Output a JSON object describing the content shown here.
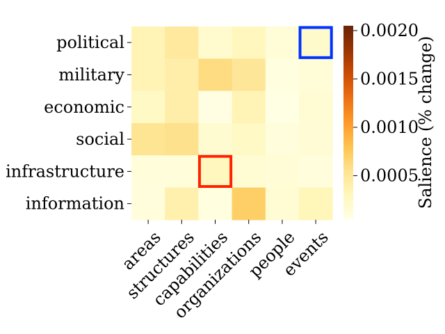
{
  "chart_data": {
    "type": "heatmap",
    "rows": [
      "political",
      "military",
      "economic",
      "social",
      "infrastructure",
      "information"
    ],
    "columns": [
      "areas",
      "structures",
      "capabilities",
      "organizations",
      "people",
      "events"
    ],
    "values": [
      [
        0.00034,
        0.00047,
        0.00019,
        0.00029,
        0.00013,
        0.00021
      ],
      [
        0.00034,
        0.00041,
        0.00061,
        0.00051,
        9e-05,
        0.00013
      ],
      [
        0.00024,
        0.00041,
        7e-05,
        0.00034,
        6e-05,
        0.00016
      ],
      [
        0.00053,
        0.00057,
        0.00018,
        0.00024,
        0.00011,
        0.00015
      ],
      [
        0.00012,
        0.00012,
        0.00029,
        0.00016,
        0.00014,
        0.00011
      ],
      [
        0.00011,
        0.00039,
        9e-05,
        0.00071,
        0.00016,
        0.00031
      ]
    ],
    "colorbar": {
      "label": "Salience (% change)",
      "ticks": [
        0.0005,
        0.001,
        0.0015,
        0.002
      ],
      "tick_labels": [
        "0.0005",
        "0.0010",
        "0.0015",
        "0.0020"
      ],
      "range": [
        5e-05,
        0.00205
      ],
      "colormap": "YlOrBr"
    },
    "highlights": [
      {
        "row": "political",
        "column": "events",
        "color": "#0033ff"
      },
      {
        "row": "infrastructure",
        "column": "capabilities",
        "color": "#ff2200"
      }
    ],
    "title": "",
    "xlabel": "",
    "ylabel": ""
  }
}
